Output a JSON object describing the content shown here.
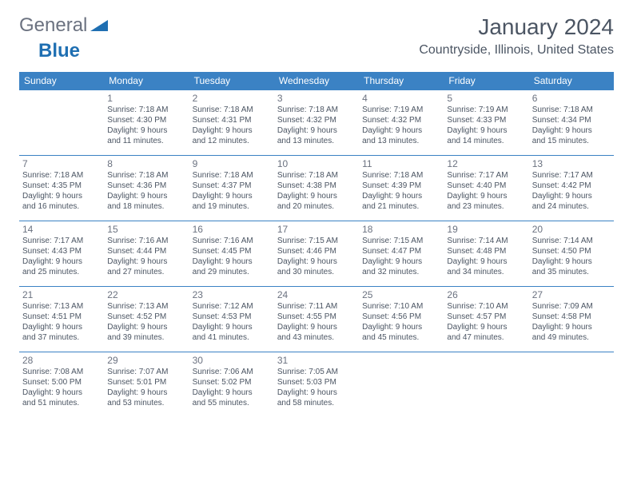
{
  "brand": {
    "part1": "General",
    "part2": "Blue"
  },
  "title": "January 2024",
  "location": "Countryside, Illinois, United States",
  "colors": {
    "header_bg": "#3b82c4",
    "header_text": "#ffffff",
    "border": "#3b82c4",
    "daynum": "#6b7280",
    "body_text": "#4b5563",
    "logo_gray": "#6b7280",
    "logo_blue": "#1f6fb2",
    "background": "#ffffff"
  },
  "day_headers": [
    "Sunday",
    "Monday",
    "Tuesday",
    "Wednesday",
    "Thursday",
    "Friday",
    "Saturday"
  ],
  "weeks": [
    [
      {
        "n": "",
        "sr": "",
        "ss": "",
        "dl1": "",
        "dl2": ""
      },
      {
        "n": "1",
        "sr": "Sunrise: 7:18 AM",
        "ss": "Sunset: 4:30 PM",
        "dl1": "Daylight: 9 hours",
        "dl2": "and 11 minutes."
      },
      {
        "n": "2",
        "sr": "Sunrise: 7:18 AM",
        "ss": "Sunset: 4:31 PM",
        "dl1": "Daylight: 9 hours",
        "dl2": "and 12 minutes."
      },
      {
        "n": "3",
        "sr": "Sunrise: 7:18 AM",
        "ss": "Sunset: 4:32 PM",
        "dl1": "Daylight: 9 hours",
        "dl2": "and 13 minutes."
      },
      {
        "n": "4",
        "sr": "Sunrise: 7:19 AM",
        "ss": "Sunset: 4:32 PM",
        "dl1": "Daylight: 9 hours",
        "dl2": "and 13 minutes."
      },
      {
        "n": "5",
        "sr": "Sunrise: 7:19 AM",
        "ss": "Sunset: 4:33 PM",
        "dl1": "Daylight: 9 hours",
        "dl2": "and 14 minutes."
      },
      {
        "n": "6",
        "sr": "Sunrise: 7:18 AM",
        "ss": "Sunset: 4:34 PM",
        "dl1": "Daylight: 9 hours",
        "dl2": "and 15 minutes."
      }
    ],
    [
      {
        "n": "7",
        "sr": "Sunrise: 7:18 AM",
        "ss": "Sunset: 4:35 PM",
        "dl1": "Daylight: 9 hours",
        "dl2": "and 16 minutes."
      },
      {
        "n": "8",
        "sr": "Sunrise: 7:18 AM",
        "ss": "Sunset: 4:36 PM",
        "dl1": "Daylight: 9 hours",
        "dl2": "and 18 minutes."
      },
      {
        "n": "9",
        "sr": "Sunrise: 7:18 AM",
        "ss": "Sunset: 4:37 PM",
        "dl1": "Daylight: 9 hours",
        "dl2": "and 19 minutes."
      },
      {
        "n": "10",
        "sr": "Sunrise: 7:18 AM",
        "ss": "Sunset: 4:38 PM",
        "dl1": "Daylight: 9 hours",
        "dl2": "and 20 minutes."
      },
      {
        "n": "11",
        "sr": "Sunrise: 7:18 AM",
        "ss": "Sunset: 4:39 PM",
        "dl1": "Daylight: 9 hours",
        "dl2": "and 21 minutes."
      },
      {
        "n": "12",
        "sr": "Sunrise: 7:17 AM",
        "ss": "Sunset: 4:40 PM",
        "dl1": "Daylight: 9 hours",
        "dl2": "and 23 minutes."
      },
      {
        "n": "13",
        "sr": "Sunrise: 7:17 AM",
        "ss": "Sunset: 4:42 PM",
        "dl1": "Daylight: 9 hours",
        "dl2": "and 24 minutes."
      }
    ],
    [
      {
        "n": "14",
        "sr": "Sunrise: 7:17 AM",
        "ss": "Sunset: 4:43 PM",
        "dl1": "Daylight: 9 hours",
        "dl2": "and 25 minutes."
      },
      {
        "n": "15",
        "sr": "Sunrise: 7:16 AM",
        "ss": "Sunset: 4:44 PM",
        "dl1": "Daylight: 9 hours",
        "dl2": "and 27 minutes."
      },
      {
        "n": "16",
        "sr": "Sunrise: 7:16 AM",
        "ss": "Sunset: 4:45 PM",
        "dl1": "Daylight: 9 hours",
        "dl2": "and 29 minutes."
      },
      {
        "n": "17",
        "sr": "Sunrise: 7:15 AM",
        "ss": "Sunset: 4:46 PM",
        "dl1": "Daylight: 9 hours",
        "dl2": "and 30 minutes."
      },
      {
        "n": "18",
        "sr": "Sunrise: 7:15 AM",
        "ss": "Sunset: 4:47 PM",
        "dl1": "Daylight: 9 hours",
        "dl2": "and 32 minutes."
      },
      {
        "n": "19",
        "sr": "Sunrise: 7:14 AM",
        "ss": "Sunset: 4:48 PM",
        "dl1": "Daylight: 9 hours",
        "dl2": "and 34 minutes."
      },
      {
        "n": "20",
        "sr": "Sunrise: 7:14 AM",
        "ss": "Sunset: 4:50 PM",
        "dl1": "Daylight: 9 hours",
        "dl2": "and 35 minutes."
      }
    ],
    [
      {
        "n": "21",
        "sr": "Sunrise: 7:13 AM",
        "ss": "Sunset: 4:51 PM",
        "dl1": "Daylight: 9 hours",
        "dl2": "and 37 minutes."
      },
      {
        "n": "22",
        "sr": "Sunrise: 7:13 AM",
        "ss": "Sunset: 4:52 PM",
        "dl1": "Daylight: 9 hours",
        "dl2": "and 39 minutes."
      },
      {
        "n": "23",
        "sr": "Sunrise: 7:12 AM",
        "ss": "Sunset: 4:53 PM",
        "dl1": "Daylight: 9 hours",
        "dl2": "and 41 minutes."
      },
      {
        "n": "24",
        "sr": "Sunrise: 7:11 AM",
        "ss": "Sunset: 4:55 PM",
        "dl1": "Daylight: 9 hours",
        "dl2": "and 43 minutes."
      },
      {
        "n": "25",
        "sr": "Sunrise: 7:10 AM",
        "ss": "Sunset: 4:56 PM",
        "dl1": "Daylight: 9 hours",
        "dl2": "and 45 minutes."
      },
      {
        "n": "26",
        "sr": "Sunrise: 7:10 AM",
        "ss": "Sunset: 4:57 PM",
        "dl1": "Daylight: 9 hours",
        "dl2": "and 47 minutes."
      },
      {
        "n": "27",
        "sr": "Sunrise: 7:09 AM",
        "ss": "Sunset: 4:58 PM",
        "dl1": "Daylight: 9 hours",
        "dl2": "and 49 minutes."
      }
    ],
    [
      {
        "n": "28",
        "sr": "Sunrise: 7:08 AM",
        "ss": "Sunset: 5:00 PM",
        "dl1": "Daylight: 9 hours",
        "dl2": "and 51 minutes."
      },
      {
        "n": "29",
        "sr": "Sunrise: 7:07 AM",
        "ss": "Sunset: 5:01 PM",
        "dl1": "Daylight: 9 hours",
        "dl2": "and 53 minutes."
      },
      {
        "n": "30",
        "sr": "Sunrise: 7:06 AM",
        "ss": "Sunset: 5:02 PM",
        "dl1": "Daylight: 9 hours",
        "dl2": "and 55 minutes."
      },
      {
        "n": "31",
        "sr": "Sunrise: 7:05 AM",
        "ss": "Sunset: 5:03 PM",
        "dl1": "Daylight: 9 hours",
        "dl2": "and 58 minutes."
      },
      {
        "n": "",
        "sr": "",
        "ss": "",
        "dl1": "",
        "dl2": ""
      },
      {
        "n": "",
        "sr": "",
        "ss": "",
        "dl1": "",
        "dl2": ""
      },
      {
        "n": "",
        "sr": "",
        "ss": "",
        "dl1": "",
        "dl2": ""
      }
    ]
  ]
}
